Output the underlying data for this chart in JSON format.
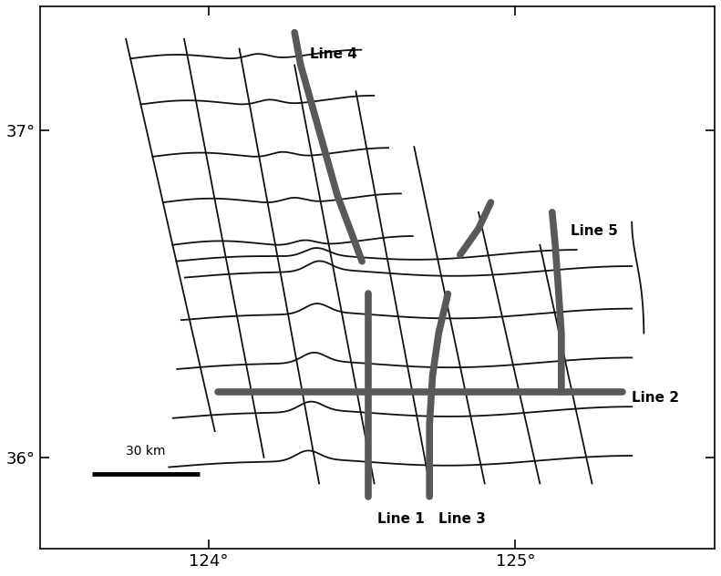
{
  "xlim": [
    123.45,
    125.65
  ],
  "ylim": [
    35.72,
    37.38
  ],
  "xticks": [
    124.0,
    125.0
  ],
  "yticks": [
    36.0,
    37.0
  ],
  "tick_labels_x": [
    "124°",
    "125°"
  ],
  "tick_labels_y": [
    "36°",
    "37°"
  ],
  "background_color": "#ffffff",
  "thin_line_color": "#111111",
  "thick_line_color": "#595959",
  "thin_lw": 1.3,
  "thick_lw": 5.5,
  "scale_bar_lon": [
    123.62,
    123.97
  ],
  "scale_bar_lat": 35.95,
  "scale_bar_label": "30 km",
  "line_label_fontsize": 11,
  "axis_tick_fontsize": 13
}
